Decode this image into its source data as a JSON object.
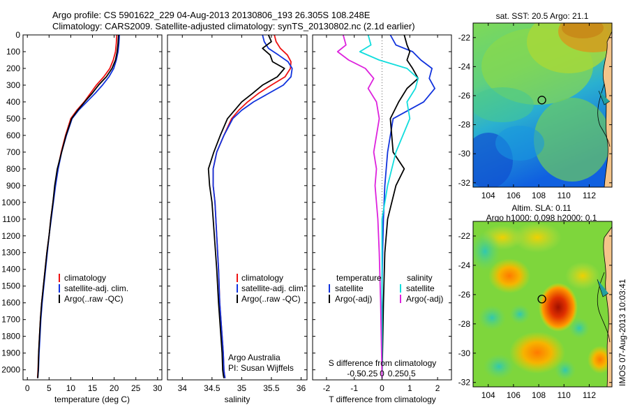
{
  "header": {
    "line1": "Argo profile: CS 5901622_229 04-Aug-2013 20130806_193 26.305S 108.248E",
    "line2": "Climatology: CARS2009. Satellite-adjusted climatology: synTS_20130802.nc (2.1d earlier)"
  },
  "stamp": "IMOS 07-Aug-2013 10:03:41",
  "chart_data": [
    {
      "id": "temperature",
      "type": "line",
      "xlabel": "temperature (deg C)",
      "ylabel": "",
      "xlim": [
        -1,
        31
      ],
      "ylim": [
        2060,
        0
      ],
      "xticks": [
        0,
        5,
        10,
        15,
        20,
        25,
        30
      ],
      "yticks": [
        0,
        100,
        200,
        300,
        400,
        500,
        600,
        700,
        800,
        900,
        1000,
        1100,
        1200,
        1300,
        1400,
        1500,
        1600,
        1700,
        1800,
        1900,
        2000
      ],
      "legend": [
        "climatology",
        "satellite-adj. clim.",
        "Argo(..raw -QC)"
      ],
      "legend_position": "lower-center",
      "series": [
        {
          "name": "climatology",
          "color": "#ee1111",
          "x": [
            20.6,
            20.5,
            20.3,
            19.8,
            19.0,
            17.6,
            15.9,
            14.5,
            13.1,
            11.4,
            10.0,
            8.8,
            7.8,
            7.0,
            6.4,
            5.9,
            5.4,
            5.0,
            4.5,
            4.1,
            3.7,
            3.3,
            3.0,
            2.8,
            2.6,
            2.45,
            2.35
          ],
          "y": [
            0,
            50,
            100,
            150,
            200,
            250,
            300,
            350,
            400,
            450,
            500,
            600,
            700,
            800,
            900,
            1000,
            1100,
            1200,
            1300,
            1400,
            1500,
            1600,
            1700,
            1800,
            1900,
            2000,
            2050
          ]
        },
        {
          "name": "satellite-adj. clim.",
          "color": "#1133dd",
          "x": [
            21.2,
            21.1,
            20.9,
            20.5,
            19.9,
            18.8,
            17.3,
            15.6,
            13.7,
            11.8,
            10.3,
            9.0,
            7.9,
            7.1,
            6.5,
            6.0,
            5.5,
            5.0,
            4.6,
            4.2,
            3.8,
            3.4,
            3.1,
            2.9,
            2.7,
            2.55,
            2.4
          ],
          "y": [
            0,
            50,
            100,
            150,
            200,
            250,
            300,
            350,
            400,
            450,
            500,
            600,
            700,
            800,
            900,
            1000,
            1100,
            1200,
            1300,
            1400,
            1500,
            1600,
            1700,
            1800,
            1900,
            2000,
            2050
          ]
        },
        {
          "name": "Argo(..raw -QC)",
          "color": "#000000",
          "x": [
            21.0,
            20.9,
            20.7,
            20.3,
            19.5,
            18.2,
            16.4,
            14.9,
            13.2,
            11.6,
            10.2,
            8.9,
            7.9,
            6.9,
            6.3,
            5.9,
            5.4,
            5.0,
            4.5,
            4.1,
            3.7,
            3.3,
            3.0,
            2.8,
            2.6,
            2.5,
            2.4
          ],
          "y": [
            0,
            50,
            100,
            150,
            200,
            250,
            300,
            350,
            400,
            450,
            500,
            600,
            700,
            800,
            900,
            1000,
            1100,
            1200,
            1300,
            1400,
            1500,
            1600,
            1700,
            1800,
            1900,
            2000,
            2050
          ]
        }
      ]
    },
    {
      "id": "salinity",
      "type": "line",
      "xlabel": "salinity",
      "xlim": [
        33.75,
        36.1
      ],
      "ylim": [
        2060,
        0
      ],
      "xticks": [
        34,
        34.5,
        35,
        35.5,
        36
      ],
      "xtick_labels": [
        "34",
        "34.5",
        "35",
        "35.5",
        "36"
      ],
      "legend": [
        "climatology",
        "satellite-adj. clim.",
        "Argo(..raw -QC)"
      ],
      "legend_position": "lower-right",
      "annotation": [
        "Argo Australia",
        "PI: Susan Wijffels"
      ],
      "series": [
        {
          "name": "climatology",
          "color": "#ee1111",
          "x": [
            35.55,
            35.58,
            35.65,
            35.77,
            35.83,
            35.82,
            35.73,
            35.5,
            35.28,
            35.1,
            34.95,
            34.83,
            34.7,
            34.58,
            34.52,
            34.52,
            34.55,
            34.58,
            34.61,
            34.63,
            34.65,
            34.67,
            34.69,
            34.7,
            34.71,
            34.72
          ],
          "y": [
            0,
            40,
            80,
            120,
            160,
            200,
            250,
            300,
            350,
            400,
            450,
            500,
            600,
            700,
            800,
            900,
            1000,
            1200,
            1400,
            1600,
            1700,
            1800,
            1900,
            2000,
            2030,
            2050
          ]
        },
        {
          "name": "satellite-adj. clim.",
          "color": "#1133dd",
          "x": [
            35.35,
            35.38,
            35.45,
            35.62,
            35.78,
            35.85,
            35.83,
            35.7,
            35.45,
            35.2,
            35.0,
            34.85,
            34.7,
            34.58,
            34.52,
            34.52,
            34.55,
            34.58,
            34.61,
            34.63,
            34.65,
            34.67,
            34.69,
            34.7,
            34.71,
            34.72
          ],
          "y": [
            0,
            40,
            80,
            120,
            160,
            200,
            250,
            300,
            350,
            400,
            450,
            500,
            600,
            700,
            800,
            900,
            1000,
            1200,
            1400,
            1600,
            1700,
            1800,
            1900,
            2000,
            2030,
            2050
          ]
        },
        {
          "name": "Argo(..raw -QC)",
          "color": "#000000",
          "x": [
            35.45,
            35.5,
            35.35,
            35.48,
            35.52,
            35.72,
            35.6,
            35.35,
            35.18,
            35.0,
            34.88,
            34.76,
            34.64,
            34.53,
            34.44,
            34.46,
            34.5,
            34.54,
            34.58,
            34.61,
            34.63,
            34.65,
            34.67,
            34.68,
            34.69,
            34.7
          ],
          "y": [
            0,
            40,
            80,
            120,
            160,
            200,
            250,
            300,
            350,
            400,
            450,
            500,
            600,
            700,
            800,
            900,
            1000,
            1200,
            1400,
            1600,
            1700,
            1800,
            1900,
            2000,
            2030,
            2050
          ]
        }
      ]
    },
    {
      "id": "difference",
      "type": "line",
      "xlabel": "T difference from climatology",
      "xlabel2": "S difference from climatology",
      "xlim": [
        -2.5,
        2.5
      ],
      "ylim": [
        2060,
        0
      ],
      "xticks": [
        -2,
        -1,
        0,
        1,
        2
      ],
      "xticks2": [
        -1,
        -0.5,
        0,
        0.5,
        1
      ],
      "xtick2_labels": [
        "-0.5",
        "-0.25",
        "0",
        "0.25",
        "0.5"
      ],
      "legend_headers": [
        "temperature",
        "salinity"
      ],
      "legend": [
        "satellite",
        "Argo(-adj)",
        "satellite",
        "Argo(-adj)"
      ],
      "legend_position": "lower-center",
      "series": [
        {
          "name": "temperature satellite",
          "color": "#1133dd",
          "x": [
            0.3,
            0.5,
            1.1,
            1.4,
            1.8,
            1.7,
            1.9,
            1.5,
            0.4,
            0.2,
            0.1,
            0.05,
            0.02,
            0.0,
            0.0,
            0.0
          ],
          "y": [
            0,
            60,
            100,
            150,
            200,
            260,
            320,
            400,
            500,
            700,
            900,
            1100,
            1300,
            1500,
            1800,
            2050
          ]
        },
        {
          "name": "temperature Argo(-adj)",
          "color": "#000000",
          "x": [
            0.8,
            0.9,
            1.0,
            0.9,
            1.1,
            1.3,
            0.9,
            0.6,
            0.3,
            0.4,
            0.8,
            0.5,
            0.2,
            0.1,
            0.05,
            0.0
          ],
          "y": [
            0,
            60,
            100,
            150,
            200,
            260,
            320,
            400,
            500,
            700,
            800,
            900,
            1100,
            1300,
            1600,
            2050
          ]
        },
        {
          "name": "salinity satellite",
          "color": "#11dddd",
          "x": [
            -0.5,
            -0.4,
            -0.8,
            -0.1,
            0.9,
            1.3,
            1.2,
            0.9,
            1.0,
            0.5,
            0.2,
            0.0,
            0.0,
            0.0,
            0.0
          ],
          "y": [
            0,
            60,
            100,
            150,
            200,
            260,
            320,
            400,
            500,
            700,
            900,
            1100,
            1300,
            1600,
            2050
          ]
        },
        {
          "name": "salinity Argo(-adj)",
          "color": "#dd22dd",
          "x": [
            -1.4,
            -1.3,
            -1.6,
            -1.2,
            -0.6,
            -0.3,
            -0.5,
            -0.2,
            -0.1,
            -0.3,
            -0.2,
            -0.25,
            -0.15,
            -0.1,
            -0.05,
            0.0
          ],
          "y": [
            0,
            60,
            100,
            150,
            200,
            260,
            320,
            400,
            500,
            700,
            800,
            900,
            1100,
            1300,
            1600,
            2050
          ]
        }
      ]
    },
    {
      "id": "sst-map",
      "type": "heatmap",
      "title": "sat. SST: 20.5  Argo: 21.1",
      "xlim": [
        102.8,
        113.8
      ],
      "ylim": [
        -32.3,
        -21.0
      ],
      "xticks": [
        104,
        106,
        108,
        110,
        112
      ],
      "yticks": [
        -22,
        -24,
        -26,
        -28,
        -30,
        -32
      ],
      "marker": {
        "lon": 108.248,
        "lat": -26.305
      }
    },
    {
      "id": "sla-map",
      "type": "heatmap",
      "title": "Altim. SLA: 0.11",
      "subtitle": "Argo h1000: 0.098 h2000: 0.1",
      "xlim": [
        102.8,
        113.8
      ],
      "ylim": [
        -32.3,
        -21.0
      ],
      "xticks": [
        104,
        106,
        108,
        110,
        112
      ],
      "yticks": [
        -22,
        -24,
        -26,
        -28,
        -30,
        -32
      ],
      "marker": {
        "lon": 108.248,
        "lat": -26.305
      }
    }
  ]
}
